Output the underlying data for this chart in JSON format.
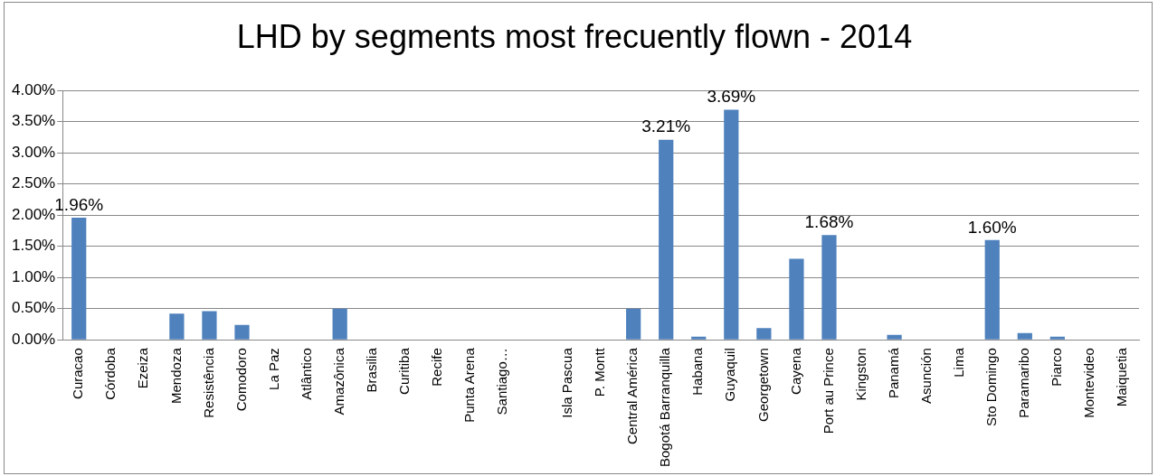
{
  "chart_data": {
    "type": "bar",
    "title": "LHD by segments most frecuently flown - 2014",
    "categories": [
      "Curacao",
      "Córdoba",
      "Ezeiza",
      "Mendoza",
      "Resistência",
      "Comodoro",
      "La Paz",
      "Atlântico",
      "Amazônica",
      "Brasilia",
      "Curitiba",
      "Recife",
      "Punta Arena",
      "Santiago…",
      null,
      "Isla Pascua",
      "P. Montt",
      "Central América",
      "Bogotá Barranquilla",
      "Habana",
      "Guyaquil",
      "Georgetown",
      "Cayena",
      "Port au Prince",
      "Kingston",
      "Panamá",
      "Asunción",
      "Lima",
      "Sto Domingo",
      "Paramaribo",
      "Piarco",
      "Montevideo",
      "Maiquetia"
    ],
    "values": [
      1.96,
      0,
      0,
      0.42,
      0.46,
      0.24,
      0,
      0,
      0.5,
      0,
      0,
      0,
      0,
      0,
      0,
      0,
      0,
      0.5,
      3.21,
      0.05,
      3.69,
      0.19,
      1.3,
      1.68,
      0,
      0.08,
      0,
      0,
      1.6,
      0.11,
      0.05,
      0,
      0
    ],
    "value_labels": [
      "1.96%",
      null,
      null,
      null,
      null,
      null,
      null,
      null,
      null,
      null,
      null,
      null,
      null,
      null,
      null,
      null,
      null,
      null,
      "3.21%",
      null,
      "3.69%",
      null,
      null,
      "1.68%",
      null,
      null,
      null,
      null,
      "1.60%",
      null,
      null,
      null,
      null
    ],
    "color": "#4f81bd",
    "ylim": [
      0,
      4
    ],
    "yticks": [
      {
        "value": 0,
        "label": "0.00%"
      },
      {
        "value": 0.5,
        "label": "0.50%"
      },
      {
        "value": 1,
        "label": "1.00%"
      },
      {
        "value": 1.5,
        "label": "1.50%"
      },
      {
        "value": 2,
        "label": "2.00%"
      },
      {
        "value": 2.5,
        "label": "2.50%"
      },
      {
        "value": 3,
        "label": "3.00%"
      },
      {
        "value": 3.5,
        "label": "3.50%"
      },
      {
        "value": 4,
        "label": "4.00%"
      }
    ],
    "grid": "y",
    "legend": false
  }
}
